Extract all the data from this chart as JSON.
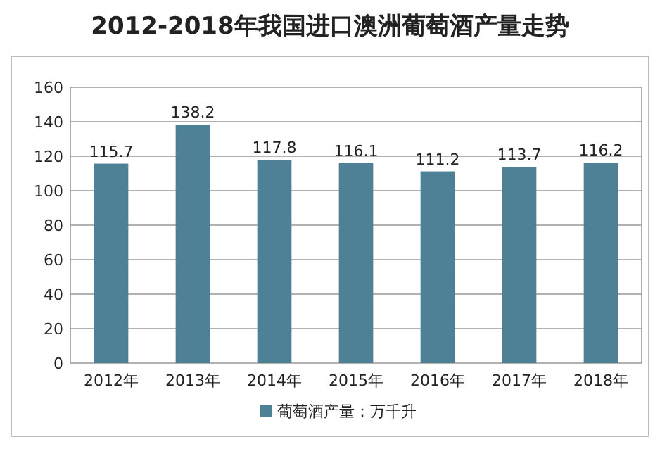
{
  "chart_data": {
    "type": "bar",
    "title": "2012-2018年我国进口澳洲葡萄酒产量走势",
    "categories": [
      "2012年",
      "2013年",
      "2014年",
      "2015年",
      "2016年",
      "2017年",
      "2018年"
    ],
    "series": [
      {
        "name": "葡萄酒产量：万千升",
        "color": "#4f8196",
        "values": [
          115.7,
          138.2,
          117.8,
          116.1,
          111.2,
          113.7,
          116.2
        ]
      }
    ],
    "ylim": [
      0,
      160
    ],
    "yticks": [
      0,
      20,
      40,
      60,
      80,
      100,
      120,
      140,
      160
    ],
    "grid": "y",
    "legend": "bottom",
    "data_labels": true
  }
}
